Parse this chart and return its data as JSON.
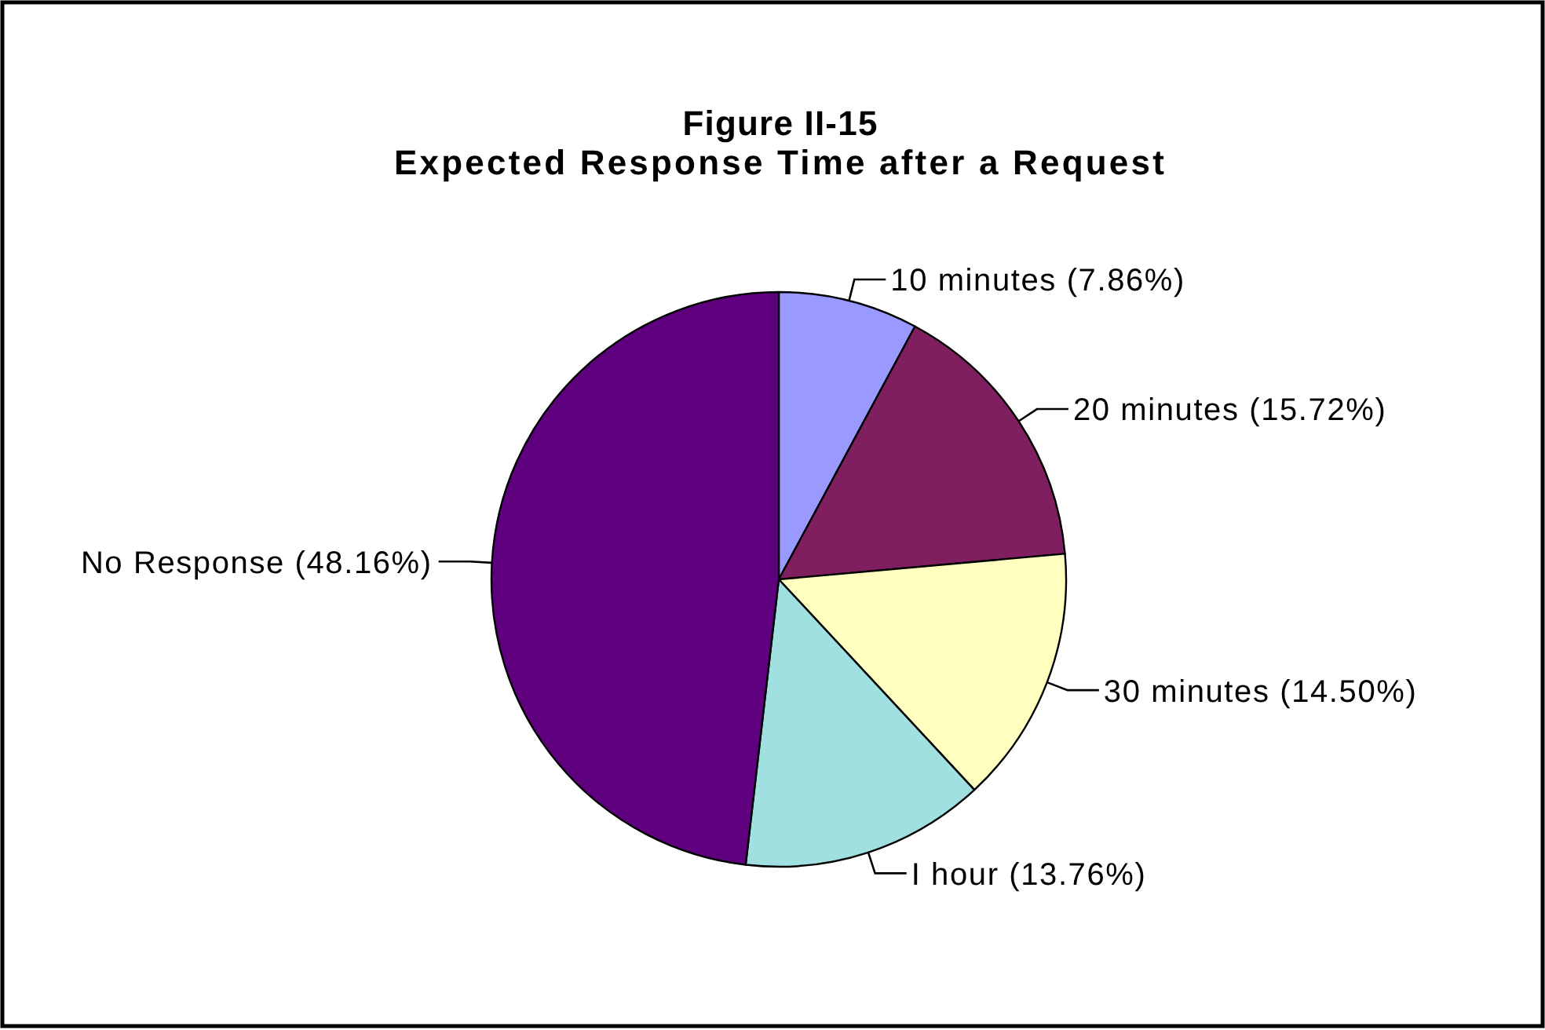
{
  "chart_data": {
    "type": "pie",
    "title": "Figure II-15",
    "subtitle": "Expected Response Time after a Request",
    "categories": [
      "10 minutes",
      "20 minutes",
      "30 minutes",
      "I hour",
      "No Response"
    ],
    "values": [
      7.86,
      15.72,
      14.5,
      13.76,
      48.16
    ],
    "colors": [
      "#9999ff",
      "#7f1f5f",
      "#ffffc0",
      "#a0e0e0",
      "#5f007f"
    ],
    "value_labels": [
      "(7.86%)",
      "(15.72%)",
      "(14.50%)",
      "(13.76%)",
      "(48.16%)"
    ]
  }
}
